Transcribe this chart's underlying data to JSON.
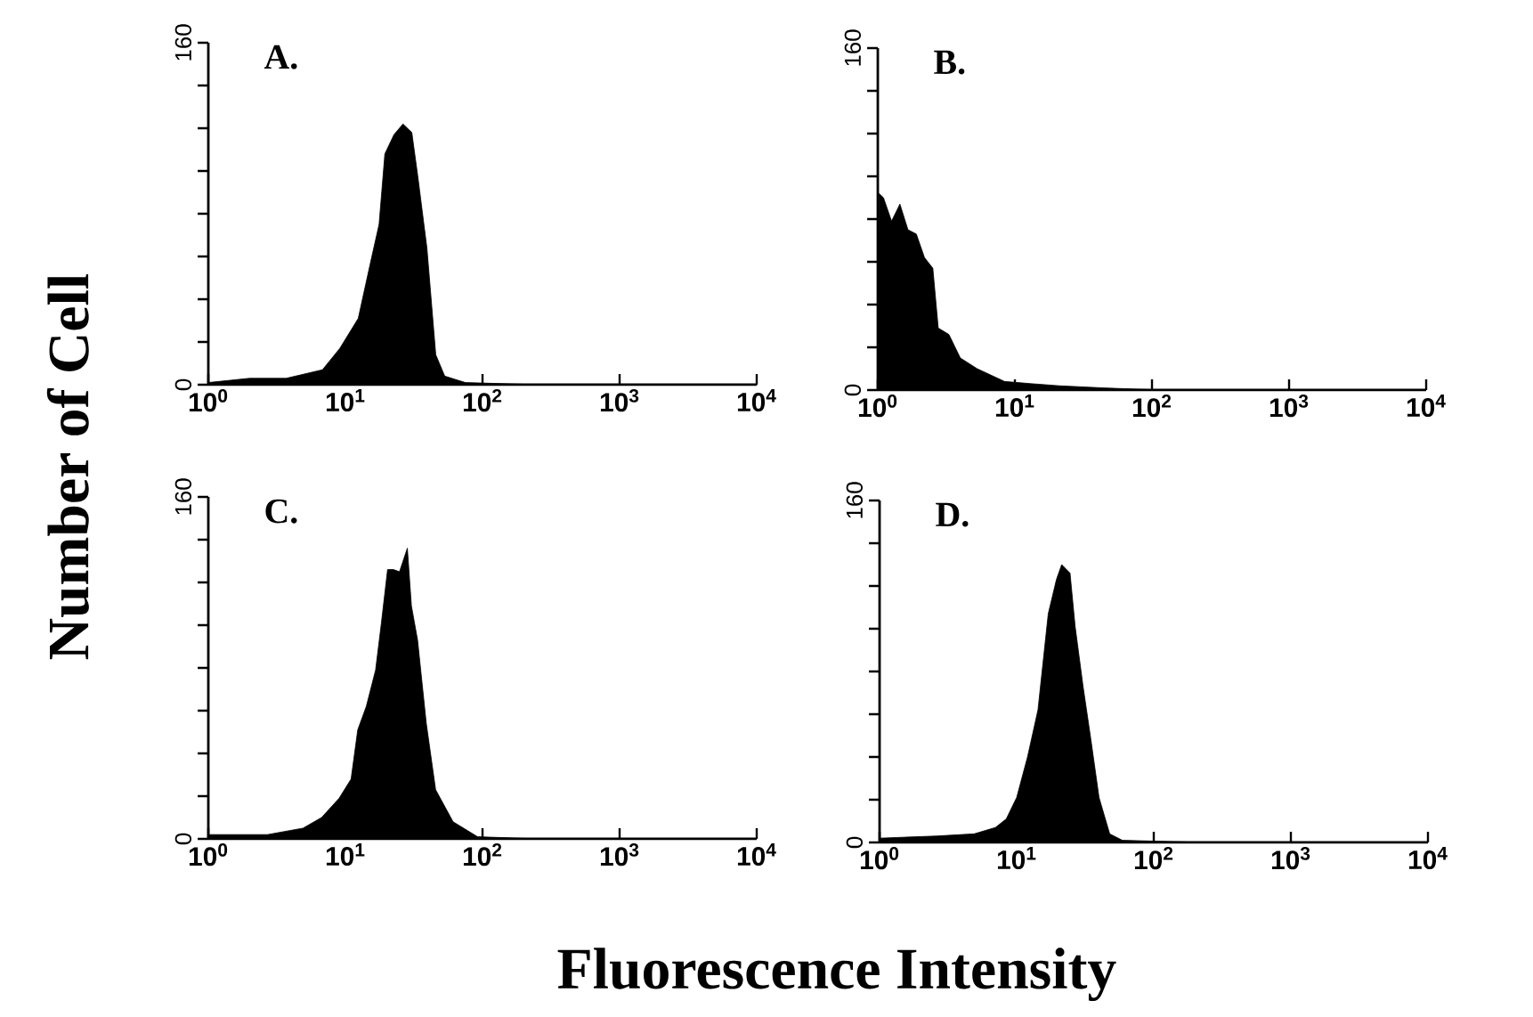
{
  "chart_data": [
    {
      "type": "area",
      "title": "A.",
      "ylabel": "Number of Cell",
      "log": "x",
      "color": "#000000",
      "x": [
        1,
        2.0,
        3.7,
        6.8,
        9.1,
        12.4,
        15.1,
        17.6,
        19.4,
        22.6,
        26.3,
        30.5,
        33.8,
        39.3,
        45.6,
        53,
        75,
        250,
        10000
      ],
      "values": [
        1,
        3,
        3,
        7,
        17,
        31,
        56,
        75,
        108,
        117,
        122,
        118,
        97,
        64,
        14,
        4,
        1,
        0,
        0
      ],
      "xlim": [
        1,
        10000
      ],
      "xticks": [
        {
          "value": 1,
          "label": "10$^{0}$"
        },
        {
          "value": 10,
          "label": "10$^{1}$"
        },
        {
          "value": 100,
          "label": "10$^{2}$"
        },
        {
          "value": 1000,
          "label": "10$^{3}$"
        },
        {
          "value": 10000,
          "label": "10$^{4}$"
        }
      ],
      "ylim": [
        0,
        160
      ],
      "yticks": [
        0,
        {
          "value": 20,
          "label": null
        },
        {
          "value": 40,
          "label": null
        },
        {
          "value": 60,
          "label": null
        },
        {
          "value": 80,
          "label": null
        },
        {
          "value": 100,
          "label": null
        },
        {
          "value": 120,
          "label": null
        },
        {
          "value": 140,
          "label": null
        },
        160
      ]
    },
    {
      "type": "area",
      "title": "B.",
      "log": "x",
      "color": "#000000",
      "x": [
        1,
        1.02,
        1.1,
        1.26,
        1.45,
        1.66,
        1.91,
        2.19,
        2.52,
        2.76,
        3.3,
        4.0,
        5.3,
        8.4,
        13,
        21,
        44,
        112,
        10000
      ],
      "values": [
        0,
        92,
        90,
        79,
        87,
        75,
        73,
        62,
        57,
        29,
        26,
        15,
        10,
        4,
        3,
        2,
        1,
        0,
        0
      ],
      "xlim": [
        1,
        10000
      ],
      "xticks": [
        {
          "value": 1,
          "label": "10$^{0}$"
        },
        {
          "value": 10,
          "label": "10$^{1}$"
        },
        {
          "value": 100,
          "label": "10$^{2}$"
        },
        {
          "value": 1000,
          "label": "10$^{3}$"
        },
        {
          "value": 10000,
          "label": "10$^{4}$"
        }
      ],
      "ylim": [
        0,
        160
      ],
      "yticks": [
        0,
        {
          "value": 20,
          "label": null
        },
        {
          "value": 40,
          "label": null
        },
        {
          "value": 60,
          "label": null
        },
        {
          "value": 80,
          "label": null
        },
        {
          "value": 100,
          "label": null
        },
        {
          "value": 120,
          "label": null
        },
        {
          "value": 140,
          "label": null
        },
        160
      ]
    },
    {
      "type": "area",
      "title": "C.",
      "xlabel": "Fluorescence Intensity",
      "log": "x",
      "color": "#000000",
      "x": [
        1,
        2.7,
        4.9,
        6.7,
        9.0,
        11,
        12.3,
        14.2,
        16.6,
        18.3,
        20.3,
        22.4,
        24.8,
        28.3,
        30.3,
        33.6,
        38.9,
        45.5,
        61,
        92,
        253,
        10000
      ],
      "values": [
        2,
        2,
        5,
        10,
        19,
        28,
        51,
        62,
        79,
        101,
        126,
        126,
        125,
        136,
        109,
        93,
        54,
        23,
        8,
        1,
        0,
        0
      ],
      "xlim": [
        1,
        10000
      ],
      "xticks": [
        {
          "value": 1,
          "label": "10$^{0}$"
        },
        {
          "value": 10,
          "label": "10$^{1}$"
        },
        {
          "value": 100,
          "label": "10$^{2}$"
        },
        {
          "value": 1000,
          "label": "10$^{3}$"
        },
        {
          "value": 10000,
          "label": "10$^{4}$"
        }
      ],
      "ylim": [
        0,
        160
      ],
      "yticks": [
        0,
        {
          "value": 20,
          "label": null
        },
        {
          "value": 40,
          "label": null
        },
        {
          "value": 60,
          "label": null
        },
        {
          "value": 80,
          "label": null
        },
        {
          "value": 100,
          "label": null
        },
        {
          "value": 120,
          "label": null
        },
        {
          "value": 140,
          "label": null
        },
        160
      ]
    },
    {
      "type": "area",
      "title": "D.",
      "log": "x",
      "color": "#000000",
      "x": [
        1,
        2.6,
        4.9,
        7.0,
        8.4,
        10,
        12,
        14.3,
        17,
        19.5,
        21.3,
        24.5,
        26.7,
        30.5,
        34.8,
        39.9,
        47.7,
        59,
        228,
        10000
      ],
      "values": [
        2,
        3,
        4,
        7,
        11,
        21,
        40,
        62,
        107,
        123,
        130,
        126,
        101,
        73,
        48,
        21,
        4,
        1,
        0,
        0
      ],
      "xlim": [
        1,
        10000
      ],
      "xticks": [
        {
          "value": 1,
          "label": "10$^{0}$"
        },
        {
          "value": 10,
          "label": "10$^{1}$"
        },
        {
          "value": 100,
          "label": "10$^{2}$"
        },
        {
          "value": 1000,
          "label": "10$^{3}$"
        },
        {
          "value": 10000,
          "label": "10$^{4}$"
        }
      ],
      "ylim": [
        0,
        160
      ],
      "yticks": [
        0,
        {
          "value": 20,
          "label": null
        },
        {
          "value": 40,
          "label": null
        },
        {
          "value": 60,
          "label": null
        },
        {
          "value": 80,
          "label": null
        },
        {
          "value": 100,
          "label": null
        },
        {
          "value": 120,
          "label": null
        },
        {
          "value": 140,
          "label": null
        },
        160
      ]
    }
  ]
}
